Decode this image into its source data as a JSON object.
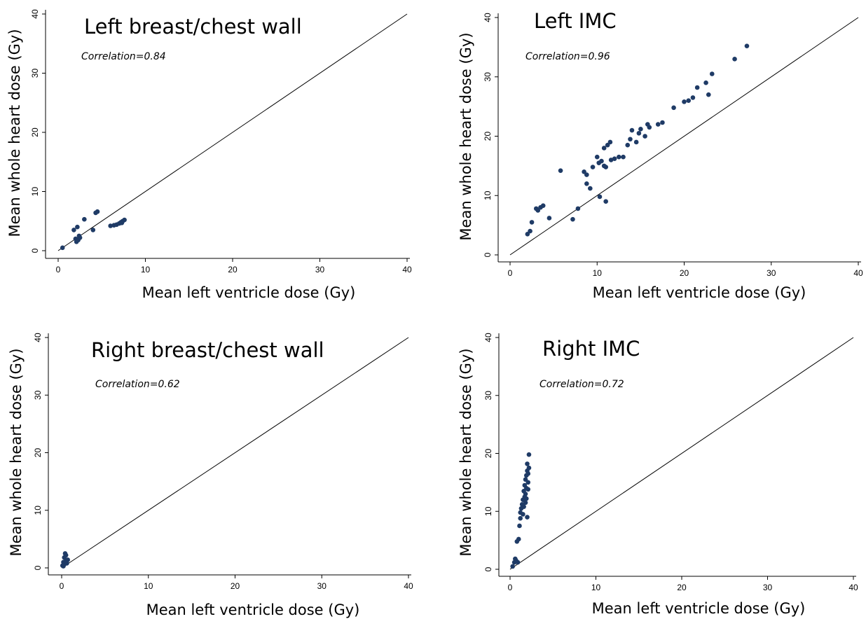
{
  "colors": {
    "point": "#1f3b66",
    "line": "#000000",
    "axis": "#000000"
  },
  "chart_data": [
    {
      "type": "scatter",
      "title": "Left breast/chest wall",
      "annotation": "Correlation=0.84",
      "xlabel": "Mean left ventricle dose (Gy)",
      "ylabel": "Mean whole heart dose (Gy)",
      "xlim": [
        0,
        40
      ],
      "ylim": [
        0,
        40
      ],
      "xticks": [
        "0",
        "10",
        "20",
        "30",
        "40"
      ],
      "yticks": [
        "0",
        "10",
        "20",
        "30",
        "40"
      ],
      "reference_line": "y=x",
      "points": [
        [
          0.5,
          0.5
        ],
        [
          1.8,
          3.5
        ],
        [
          2.0,
          2.0
        ],
        [
          2.1,
          1.5
        ],
        [
          2.2,
          4.0
        ],
        [
          2.3,
          1.8
        ],
        [
          2.4,
          2.5
        ],
        [
          2.5,
          2.2
        ],
        [
          3.0,
          5.3
        ],
        [
          4.0,
          3.5
        ],
        [
          4.3,
          6.4
        ],
        [
          4.5,
          6.6
        ],
        [
          6.0,
          4.2
        ],
        [
          6.4,
          4.3
        ],
        [
          6.7,
          4.4
        ],
        [
          7.0,
          4.6
        ],
        [
          7.2,
          4.8
        ],
        [
          7.4,
          5.0
        ],
        [
          7.6,
          5.2
        ],
        [
          7.3,
          4.7
        ]
      ]
    },
    {
      "type": "scatter",
      "title": "Left IMC",
      "annotation": "Correlation=0.96",
      "xlabel": "Mean left ventricle dose (Gy)",
      "ylabel": "Mean whole heart dose (Gy)",
      "xlim": [
        0,
        40
      ],
      "ylim": [
        0,
        40
      ],
      "xticks": [
        "0",
        "10",
        "20",
        "30",
        "40"
      ],
      "yticks": [
        "0",
        "10",
        "20",
        "30",
        "40"
      ],
      "reference_line": "y=x",
      "points": [
        [
          2.0,
          3.5
        ],
        [
          2.3,
          4.0
        ],
        [
          2.5,
          5.5
        ],
        [
          3.0,
          7.8
        ],
        [
          3.2,
          7.5
        ],
        [
          3.5,
          8.0
        ],
        [
          3.8,
          8.3
        ],
        [
          4.5,
          6.2
        ],
        [
          5.8,
          14.2
        ],
        [
          7.2,
          6.0
        ],
        [
          7.8,
          7.8
        ],
        [
          8.5,
          14.0
        ],
        [
          8.8,
          13.5
        ],
        [
          8.8,
          12.0
        ],
        [
          9.2,
          11.2
        ],
        [
          9.5,
          14.8
        ],
        [
          10.0,
          16.5
        ],
        [
          10.2,
          15.5
        ],
        [
          10.5,
          15.8
        ],
        [
          10.8,
          15.0
        ],
        [
          10.8,
          18.0
        ],
        [
          11.0,
          14.8
        ],
        [
          11.2,
          18.5
        ],
        [
          11.5,
          19.0
        ],
        [
          11.6,
          16.0
        ],
        [
          11.0,
          9.0
        ],
        [
          10.3,
          9.8
        ],
        [
          12.0,
          16.2
        ],
        [
          12.5,
          16.5
        ],
        [
          13.0,
          16.5
        ],
        [
          13.5,
          18.5
        ],
        [
          13.8,
          19.5
        ],
        [
          14.0,
          21.0
        ],
        [
          14.5,
          19.0
        ],
        [
          14.8,
          20.5
        ],
        [
          15.0,
          21.2
        ],
        [
          15.5,
          20.0
        ],
        [
          15.8,
          22.0
        ],
        [
          16.0,
          21.5
        ],
        [
          17.0,
          22.0
        ],
        [
          17.5,
          22.3
        ],
        [
          18.8,
          24.8
        ],
        [
          20.0,
          25.8
        ],
        [
          20.5,
          26.0
        ],
        [
          21.0,
          26.5
        ],
        [
          21.5,
          28.2
        ],
        [
          22.5,
          29.0
        ],
        [
          22.8,
          27.0
        ],
        [
          23.2,
          30.5
        ],
        [
          25.8,
          33.0
        ],
        [
          27.2,
          35.2
        ]
      ]
    },
    {
      "type": "scatter",
      "title": "Right breast/chest wall",
      "annotation": "Correlation=0.62",
      "xlabel": "Mean left ventricle dose (Gy)",
      "ylabel": "Mean whole heart dose (Gy)",
      "xlim": [
        0,
        40
      ],
      "ylim": [
        0,
        40
      ],
      "xticks": [
        "0",
        "10",
        "20",
        "30",
        "40"
      ],
      "yticks": [
        "0",
        "10",
        "20",
        "30",
        "40"
      ],
      "reference_line": "y=x",
      "points": [
        [
          0.1,
          0.4
        ],
        [
          0.2,
          1.0
        ],
        [
          0.3,
          1.8
        ],
        [
          0.4,
          2.5
        ],
        [
          0.3,
          0.6
        ],
        [
          0.5,
          1.2
        ],
        [
          0.6,
          0.8
        ],
        [
          0.7,
          1.4
        ],
        [
          0.5,
          2.2
        ],
        [
          0.2,
          0.3
        ]
      ]
    },
    {
      "type": "scatter",
      "title": "Right IMC",
      "annotation": "Correlation=0.72",
      "xlabel": "Mean left ventricle dose (Gy)",
      "ylabel": "Mean whole heart dose (Gy)",
      "xlim": [
        0,
        40
      ],
      "ylim": [
        0,
        40
      ],
      "xticks": [
        "0",
        "10",
        "20",
        "30",
        "40"
      ],
      "yticks": [
        "0",
        "10",
        "20",
        "30",
        "40"
      ],
      "reference_line": "y=x",
      "points": [
        [
          0.3,
          0.5
        ],
        [
          0.5,
          1.2
        ],
        [
          0.7,
          1.5
        ],
        [
          0.9,
          1.2
        ],
        [
          0.6,
          1.8
        ],
        [
          0.8,
          4.8
        ],
        [
          1.0,
          5.2
        ],
        [
          1.1,
          7.5
        ],
        [
          1.2,
          8.8
        ],
        [
          1.2,
          9.8
        ],
        [
          1.3,
          10.5
        ],
        [
          1.4,
          11.2
        ],
        [
          1.5,
          9.5
        ],
        [
          1.5,
          12.0
        ],
        [
          1.6,
          10.8
        ],
        [
          1.6,
          13.5
        ],
        [
          1.7,
          12.5
        ],
        [
          1.7,
          14.5
        ],
        [
          1.8,
          11.5
        ],
        [
          1.8,
          15.5
        ],
        [
          1.8,
          13.0
        ],
        [
          1.9,
          16.2
        ],
        [
          1.9,
          14.0
        ],
        [
          2.0,
          17.0
        ],
        [
          2.0,
          18.2
        ],
        [
          2.1,
          16.5
        ],
        [
          2.1,
          15.0
        ],
        [
          2.2,
          19.8
        ],
        [
          2.2,
          17.5
        ],
        [
          2.0,
          9.0
        ],
        [
          2.1,
          13.8
        ],
        [
          1.9,
          12.2
        ]
      ]
    }
  ]
}
